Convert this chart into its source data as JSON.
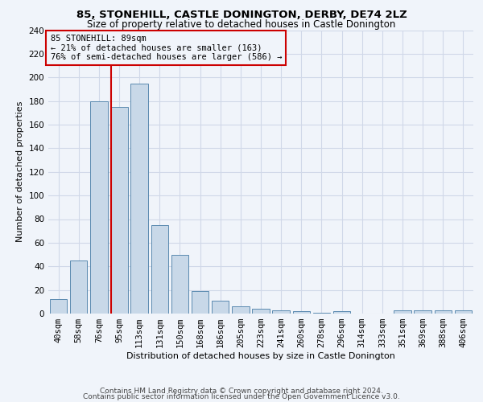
{
  "title1": "85, STONEHILL, CASTLE DONINGTON, DERBY, DE74 2LZ",
  "title2": "Size of property relative to detached houses in Castle Donington",
  "xlabel": "Distribution of detached houses by size in Castle Donington",
  "ylabel": "Number of detached properties",
  "footer1": "Contains HM Land Registry data © Crown copyright and database right 2024.",
  "footer2": "Contains public sector information licensed under the Open Government Licence v3.0.",
  "annotation_line1": "85 STONEHILL: 89sqm",
  "annotation_line2": "← 21% of detached houses are smaller (163)",
  "annotation_line3": "76% of semi-detached houses are larger (586) →",
  "bar_color": "#c8d8e8",
  "bar_edge_color": "#5a8ab0",
  "grid_color": "#d0d8e8",
  "vline_color": "#cc0000",
  "annotation_box_edge": "#cc0000",
  "background_color": "#f0f4fa",
  "categories": [
    "40sqm",
    "58sqm",
    "76sqm",
    "95sqm",
    "113sqm",
    "131sqm",
    "150sqm",
    "168sqm",
    "186sqm",
    "205sqm",
    "223sqm",
    "241sqm",
    "260sqm",
    "278sqm",
    "296sqm",
    "314sqm",
    "333sqm",
    "351sqm",
    "369sqm",
    "388sqm",
    "406sqm"
  ],
  "values": [
    12,
    45,
    180,
    175,
    195,
    75,
    50,
    19,
    11,
    6,
    4,
    3,
    2,
    1,
    2,
    0,
    0,
    3,
    3,
    3,
    3
  ],
  "vline_x": 2.62,
  "ylim": [
    0,
    240
  ],
  "yticks": [
    0,
    20,
    40,
    60,
    80,
    100,
    120,
    140,
    160,
    180,
    200,
    220,
    240
  ],
  "title1_fontsize": 9.5,
  "title2_fontsize": 8.5,
  "xlabel_fontsize": 8,
  "ylabel_fontsize": 8,
  "tick_fontsize": 7.5,
  "annotation_fontsize": 7.5,
  "footer_fontsize": 6.5
}
